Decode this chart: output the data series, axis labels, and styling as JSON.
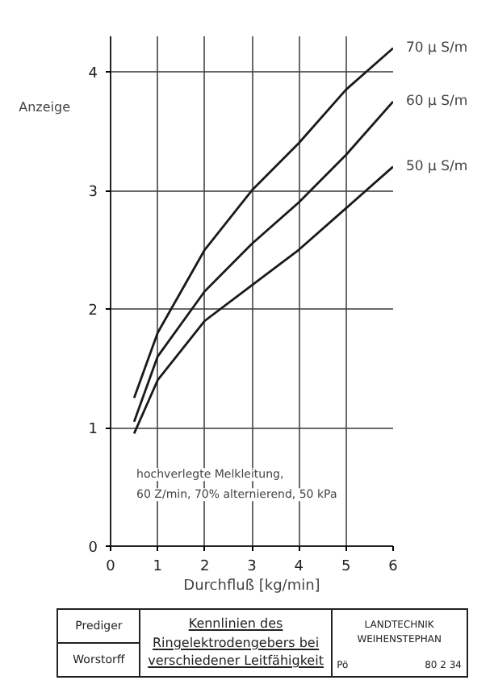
{
  "chart_data": {
    "type": "line",
    "title": "Kennlinien des Ringelektrodengebers bei verschiedener Leitfähigkeit",
    "xlabel": "Durchfluß [kg/min]",
    "ylabel": "Anzeige",
    "x": [
      0.5,
      1,
      2,
      3,
      4,
      5,
      6
    ],
    "series": [
      {
        "name": "70 µ S/m",
        "color": "#1a1a1a",
        "values": [
          1.25,
          1.8,
          2.5,
          3.0,
          3.4,
          3.85,
          4.2
        ]
      },
      {
        "name": "60 µ S/m",
        "color": "#1a1a1a",
        "values": [
          1.05,
          1.6,
          2.15,
          2.55,
          2.9,
          3.3,
          3.75
        ]
      },
      {
        "name": "50 µ S/m",
        "color": "#1a1a1a",
        "values": [
          0.95,
          1.4,
          1.9,
          2.2,
          2.5,
          2.85,
          3.2
        ]
      }
    ],
    "xlim": [
      0,
      6
    ],
    "ylim": [
      0,
      4.3
    ],
    "xticks": [
      0,
      1,
      2,
      3,
      4,
      5,
      6
    ],
    "yticks": [
      0,
      1,
      2,
      3,
      4
    ],
    "grid": true,
    "annotations": [
      "hochverlegte Melkleitung,",
      "60 Z/min, 70% alternierend, 50 kPa",
      "Prediger",
      "Worstorff",
      "LANDTECHNIK WEIHENSTEPHAN",
      "Pö",
      "80 2 34"
    ]
  }
}
